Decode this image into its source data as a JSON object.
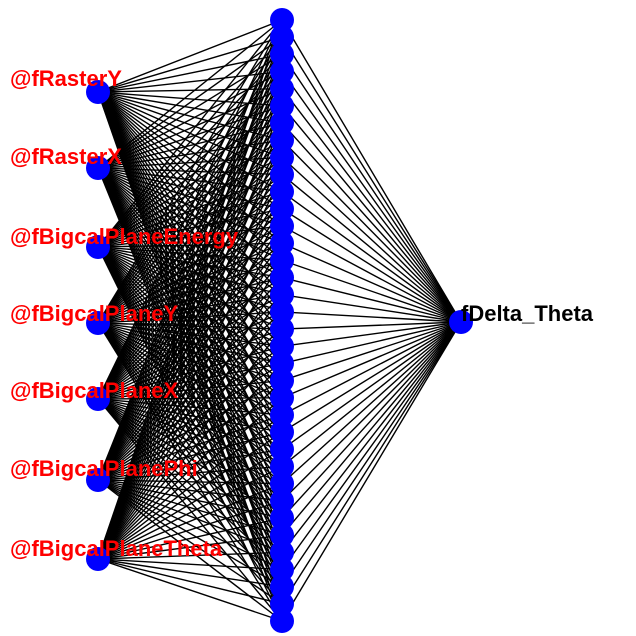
{
  "network": {
    "colors": {
      "background": "#ffffff",
      "connection": "#000000",
      "node": "#0000ff",
      "input_label": "#ff0000",
      "output_label": "#000000"
    },
    "inputs": [
      {
        "label": "@fRasterY"
      },
      {
        "label": "@fRasterX"
      },
      {
        "label": "@fBigcalPlaneEnergy"
      },
      {
        "label": "@fBigcalPlaneY"
      },
      {
        "label": "@fBigcalPlaneX"
      },
      {
        "label": "@fBigcalPlanePhi"
      },
      {
        "label": "@fBigcalPlaneTheta"
      }
    ],
    "output": {
      "label": "fDelta_Theta"
    }
  }
}
